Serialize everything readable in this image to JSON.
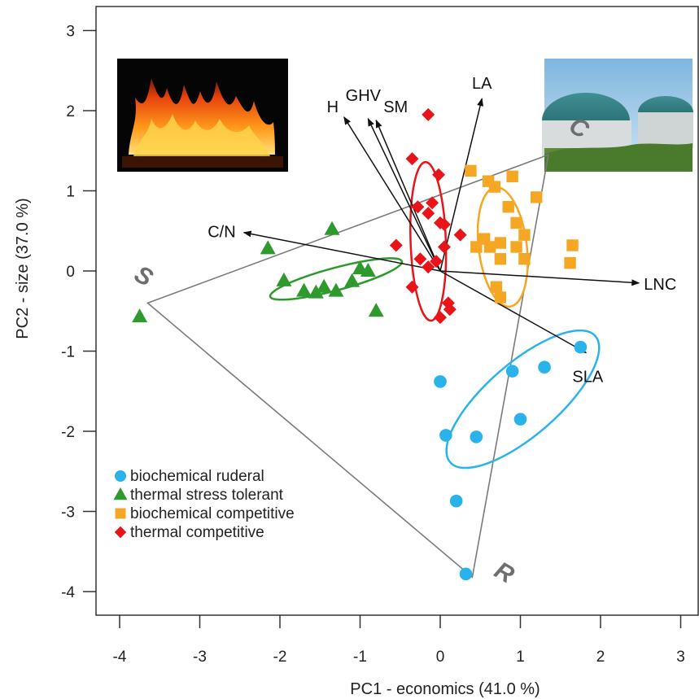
{
  "chart_data": {
    "type": "scatter",
    "xlabel": "PC1 - economics (41.0 %)",
    "ylabel": "PC2 - size (37.0 %)",
    "xlim": [
      -4.3,
      3.2
    ],
    "ylim": [
      -4.2,
      3.3
    ],
    "xticks": [
      -4,
      -3,
      -2,
      -1,
      0,
      1,
      2,
      3
    ],
    "yticks": [
      -4,
      -3,
      -2,
      -1,
      0,
      1,
      2,
      3
    ],
    "grid": false,
    "legend_position": "bottom-left",
    "series": [
      {
        "name": "biochemical ruderal",
        "marker": "circle",
        "color": "#29b3ea",
        "points": [
          [
            1.75,
            -0.95
          ],
          [
            1.3,
            -1.2
          ],
          [
            0.9,
            -1.25
          ],
          [
            0.0,
            -1.38
          ],
          [
            1.0,
            -1.85
          ],
          [
            0.07,
            -2.05
          ],
          [
            0.45,
            -2.07
          ],
          [
            0.2,
            -2.87
          ],
          [
            0.32,
            -3.78
          ]
        ],
        "ellipse": {
          "cx": 1.03,
          "cy": -1.6,
          "rx": 1.2,
          "ry": 0.45,
          "angle_deg": 41
        }
      },
      {
        "name": "thermal stress tolerant",
        "marker": "triangle",
        "color": "#2e9a2e",
        "points": [
          [
            -3.75,
            -0.57
          ],
          [
            -2.15,
            0.28
          ],
          [
            -1.35,
            0.52
          ],
          [
            -1.95,
            -0.12
          ],
          [
            -1.0,
            0.03
          ],
          [
            -0.9,
            0.0
          ],
          [
            -1.1,
            -0.13
          ],
          [
            -1.3,
            -0.25
          ],
          [
            -1.55,
            -0.27
          ],
          [
            -1.7,
            -0.25
          ],
          [
            -1.45,
            -0.2
          ],
          [
            -0.8,
            -0.5
          ]
        ],
        "ellipse": {
          "cx": -1.3,
          "cy": -0.1,
          "rx": 0.85,
          "ry": 0.14,
          "angle_deg": 15
        }
      },
      {
        "name": "biochemical competitive",
        "marker": "square",
        "color": "#f5a623",
        "points": [
          [
            0.38,
            1.25
          ],
          [
            0.6,
            1.12
          ],
          [
            0.68,
            1.05
          ],
          [
            0.9,
            1.18
          ],
          [
            1.2,
            0.92
          ],
          [
            0.85,
            0.8
          ],
          [
            0.95,
            0.6
          ],
          [
            0.55,
            0.4
          ],
          [
            0.75,
            0.35
          ],
          [
            0.62,
            0.3
          ],
          [
            0.95,
            0.3
          ],
          [
            1.05,
            0.45
          ],
          [
            1.05,
            0.15
          ],
          [
            0.75,
            0.15
          ],
          [
            1.65,
            0.32
          ],
          [
            1.62,
            0.1
          ],
          [
            0.7,
            -0.2
          ],
          [
            0.75,
            -0.33
          ],
          [
            0.45,
            0.3
          ]
        ],
        "ellipse": {
          "cx": 0.78,
          "cy": 0.3,
          "rx": 0.75,
          "ry": 0.3,
          "angle_deg": 97
        }
      },
      {
        "name": "thermal competitive",
        "marker": "diamond",
        "color": "#e8141a",
        "points": [
          [
            -0.15,
            1.95
          ],
          [
            -0.35,
            1.4
          ],
          [
            -0.02,
            1.2
          ],
          [
            -0.1,
            0.85
          ],
          [
            -0.28,
            0.8
          ],
          [
            -0.15,
            0.72
          ],
          [
            0.0,
            0.6
          ],
          [
            0.05,
            0.58
          ],
          [
            -0.55,
            0.32
          ],
          [
            0.25,
            0.45
          ],
          [
            0.05,
            0.3
          ],
          [
            -0.25,
            0.15
          ],
          [
            -0.15,
            0.05
          ],
          [
            -0.05,
            0.12
          ],
          [
            -0.35,
            -0.2
          ],
          [
            0.1,
            -0.4
          ],
          [
            0.12,
            -0.48
          ],
          [
            0.0,
            -0.58
          ]
        ],
        "ellipse": {
          "cx": -0.15,
          "cy": 0.37,
          "rx": 0.99,
          "ry": 0.22,
          "angle_deg": 92
        }
      }
    ],
    "vectors": [
      {
        "label": "H",
        "x": -1.2,
        "y": 1.92
      },
      {
        "label": "GHV",
        "x": -0.9,
        "y": 1.9
      },
      {
        "label": "SM",
        "x": -0.8,
        "y": 1.88
      },
      {
        "label": "LA",
        "x": 0.52,
        "y": 2.15
      },
      {
        "label": "C/N",
        "x": -2.45,
        "y": 0.48
      },
      {
        "label": "LNC",
        "x": 2.48,
        "y": -0.15
      },
      {
        "label": "SLA",
        "x": 1.82,
        "y": -1.02
      }
    ],
    "vector_origin": [
      0.0,
      0.0
    ],
    "triangle": {
      "vertices": [
        [
          -3.65,
          -0.4
        ],
        [
          1.35,
          1.45
        ],
        [
          0.4,
          -3.82
        ]
      ],
      "labels": [
        {
          "text": "S",
          "x": -3.75,
          "y": -0.15
        },
        {
          "text": "C",
          "x": 1.68,
          "y": 1.7
        },
        {
          "text": "R",
          "x": 0.75,
          "y": -3.85
        }
      ]
    },
    "images": [
      {
        "name": "fire-photo"
      },
      {
        "name": "biogas-plant-photo"
      }
    ]
  }
}
